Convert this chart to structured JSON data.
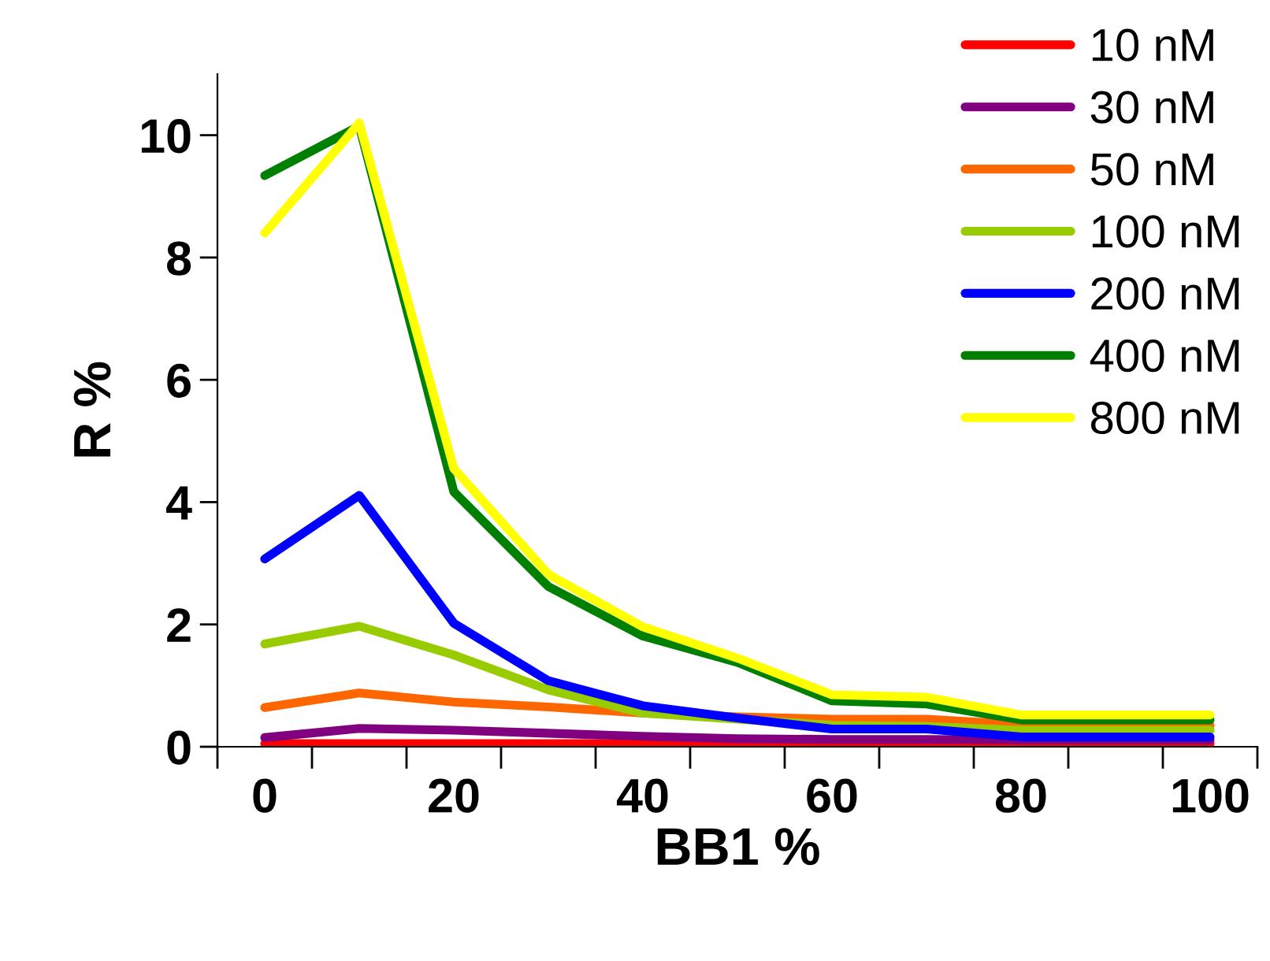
{
  "chart_data": {
    "type": "line",
    "xlabel": "BB1 %",
    "ylabel": "R %",
    "categories": [
      "0",
      null,
      "20",
      null,
      "40",
      null,
      "60",
      null,
      "80",
      null,
      "100"
    ],
    "ylim": [
      0,
      11
    ],
    "yticks": [
      0,
      2,
      4,
      6,
      8,
      10
    ],
    "grid": false,
    "legend": "top right",
    "marker": "none",
    "line_style": "solid",
    "series": [
      {
        "name": "10 nM",
        "color": "#ff0000",
        "values": [
          0.05,
          0.05,
          0.05,
          0.05,
          0.05,
          0.05,
          0.05,
          0.05,
          0.05,
          0.05,
          0.05
        ]
      },
      {
        "name": "30 nM",
        "color": "#800080",
        "values": [
          0.15,
          0.3,
          0.27,
          0.22,
          0.17,
          0.13,
          0.12,
          0.12,
          0.11,
          0.11,
          0.11
        ]
      },
      {
        "name": "50 nM",
        "color": "#ff6600",
        "values": [
          0.64,
          0.88,
          0.73,
          0.65,
          0.55,
          0.49,
          0.45,
          0.45,
          0.36,
          0.36,
          0.35
        ]
      },
      {
        "name": "100 nM",
        "color": "#99cc00",
        "values": [
          1.68,
          1.97,
          1.5,
          0.93,
          0.55,
          0.45,
          0.35,
          0.33,
          0.27,
          0.27,
          0.27
        ]
      },
      {
        "name": "200 nM",
        "color": "#0000ff",
        "values": [
          3.07,
          4.11,
          2.02,
          1.08,
          0.67,
          0.47,
          0.29,
          0.29,
          0.16,
          0.16,
          0.16
        ]
      },
      {
        "name": "400 nM",
        "color": "#008000",
        "values": [
          9.34,
          10.15,
          4.17,
          2.62,
          1.81,
          1.38,
          0.75,
          0.7,
          0.44,
          0.44,
          0.44
        ]
      },
      {
        "name": "800 nM",
        "color": "#ffff00",
        "values": [
          8.4,
          10.2,
          4.55,
          2.82,
          1.96,
          1.45,
          0.85,
          0.81,
          0.52,
          0.52,
          0.52
        ]
      }
    ]
  }
}
